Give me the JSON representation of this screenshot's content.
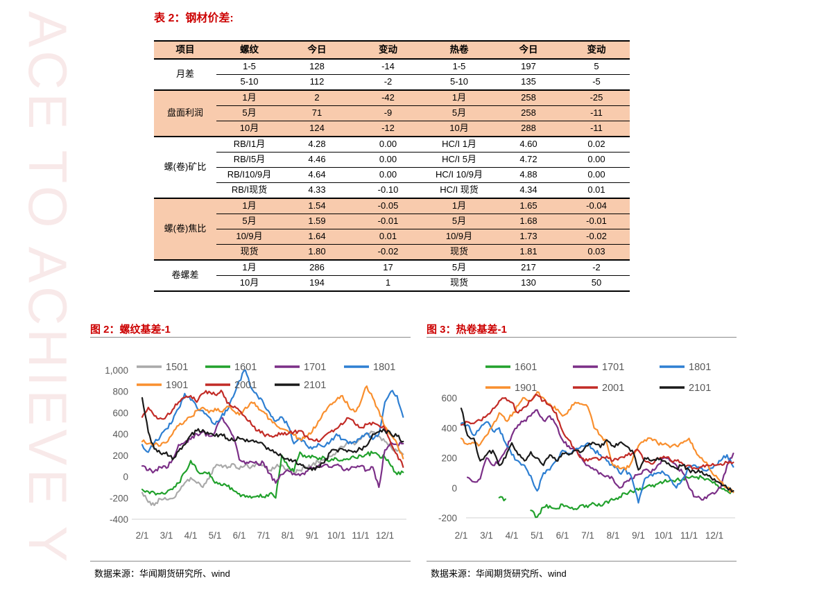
{
  "watermark": {
    "text": "ACE TO ACHIEVE Y",
    "color": "#e9c2c2"
  },
  "table_section": {
    "title": "表 2：钢材价差:",
    "title_color": "#cc0000",
    "shaded_bg": "#f8cbad",
    "header": [
      "项目",
      "螺纹",
      "今日",
      "变动",
      "热卷",
      "今日",
      "变动"
    ],
    "sections": [
      {
        "label": "月差",
        "shaded": false,
        "rows": [
          [
            "1-5",
            "128",
            "-14",
            "1-5",
            "197",
            "5"
          ],
          [
            "5-10",
            "112",
            "-2",
            "5-10",
            "135",
            "-5"
          ]
        ]
      },
      {
        "label": "盘面利润",
        "shaded": true,
        "rows": [
          [
            "1月",
            "2",
            "-42",
            "1月",
            "258",
            "-25"
          ],
          [
            "5月",
            "71",
            "-9",
            "5月",
            "258",
            "-11"
          ],
          [
            "10月",
            "124",
            "-12",
            "10月",
            "288",
            "-11"
          ]
        ]
      },
      {
        "label": "螺(卷)矿比",
        "shaded": false,
        "rows": [
          [
            "RB/I1月",
            "4.28",
            "0.00",
            "HC/I 1月",
            "4.60",
            "0.02"
          ],
          [
            "RB/I5月",
            "4.46",
            "0.00",
            "HC/I 5月",
            "4.72",
            "0.00"
          ],
          [
            "RB/I10/9月",
            "4.64",
            "0.00",
            "HC/I 10/9月",
            "4.88",
            "0.00"
          ],
          [
            "RB/I现货",
            "4.33",
            "-0.10",
            "HC/I 现货",
            "4.34",
            "0.01"
          ]
        ]
      },
      {
        "label": "螺(卷)焦比",
        "shaded": true,
        "rows": [
          [
            "1月",
            "1.54",
            "-0.05",
            "1月",
            "1.65",
            "-0.04"
          ],
          [
            "5月",
            "1.59",
            "-0.01",
            "5月",
            "1.68",
            "-0.01"
          ],
          [
            "10/9月",
            "1.64",
            "0.01",
            "10/9月",
            "1.73",
            "-0.02"
          ],
          [
            "现货",
            "1.80",
            "-0.02",
            "现货",
            "1.81",
            "0.03"
          ]
        ]
      },
      {
        "label": "卷螺差",
        "shaded": false,
        "rows": [
          [
            "1月",
            "286",
            "17",
            "5月",
            "217",
            "-2"
          ],
          [
            "10月",
            "194",
            "1",
            "现货",
            "130",
            "50"
          ]
        ]
      }
    ]
  },
  "figures": [
    {
      "title": "图 2：螺纹基差-1",
      "source": "数据来源：华闻期货研究所、wind"
    },
    {
      "title": "图 3：热卷基差-1",
      "source": "数据来源：华闻期货研究所、wind"
    }
  ],
  "chart_data": [
    {
      "type": "line",
      "title": "图 2：螺纹基差-1",
      "xlabel": "",
      "ylabel": "",
      "grid": false,
      "legend_position": "top-inside",
      "x_start": 2,
      "x_step": 0.25,
      "xtick_labels": [
        "2/1",
        "3/1",
        "4/1",
        "5/1",
        "6/1",
        "7/1",
        "8/1",
        "9/1",
        "10/1",
        "11/1",
        "12/1"
      ],
      "ylim": [
        -400,
        1000
      ],
      "ytick_values": [
        1000,
        800,
        600,
        400,
        200,
        0,
        -200,
        -400
      ],
      "ytick_labels": [
        "1,000",
        "800",
        "600",
        "400",
        "200",
        "0",
        "-200",
        "-400"
      ],
      "axis_color": "#d9d9d9",
      "tick_color": "#595959",
      "legend_rows": [
        [
          "1501",
          "1601",
          "1701",
          "1801"
        ],
        [
          "1901",
          "2001",
          "2101"
        ]
      ],
      "series": [
        {
          "name": "1501",
          "color": "#a9a9a9",
          "values": [
            -150,
            -240,
            -270,
            -210,
            -215,
            -205,
            -140,
            -60,
            -10,
            -60,
            -100,
            -20,
            90,
            110,
            80,
            120,
            70,
            110,
            90,
            120,
            110,
            60,
            90,
            110,
            70,
            40,
            60,
            90,
            110,
            140,
            160,
            190,
            230,
            280,
            320,
            300,
            350,
            400,
            420,
            380,
            330,
            280,
            240,
            210
          ]
        },
        {
          "name": "1601",
          "color": "#21a12c",
          "values": [
            -120,
            -140,
            -150,
            -160,
            -150,
            -120,
            -60,
            40,
            150,
            60,
            30,
            40,
            -60,
            -80,
            -90,
            -130,
            -160,
            -190,
            -200,
            -180,
            -190,
            -160,
            -200,
            200,
            100,
            50,
            230,
            180,
            200,
            160,
            180,
            150,
            170,
            150,
            160,
            180,
            200,
            210,
            220,
            200,
            180,
            100,
            20,
            40
          ]
        },
        {
          "name": "1701",
          "color": "#7b2f87",
          "values": [
            100,
            60,
            50,
            90,
            80,
            160,
            300,
            320,
            350,
            400,
            420,
            380,
            420,
            550,
            480,
            380,
            160,
            120,
            140,
            120,
            130,
            30,
            -60,
            20,
            60,
            30,
            10,
            50,
            80,
            100,
            110,
            90,
            110,
            70,
            60,
            90,
            100,
            60,
            90,
            -100,
            250,
            320,
            300,
            310
          ]
        },
        {
          "name": "1801",
          "color": "#2e7fd2",
          "values": [
            300,
            230,
            320,
            380,
            450,
            520,
            640,
            780,
            720,
            650,
            620,
            560,
            490,
            560,
            620,
            750,
            900,
            1000,
            830,
            760,
            690,
            600,
            520,
            560,
            480,
            310,
            360,
            300,
            260,
            310,
            280,
            330,
            400,
            350,
            310,
            330,
            360,
            410,
            350,
            400,
            700,
            800,
            760,
            560
          ]
        },
        {
          "name": "1901",
          "color": "#f98f2e",
          "values": [
            330,
            310,
            300,
            290,
            320,
            400,
            480,
            520,
            560,
            620,
            650,
            600,
            640,
            610,
            660,
            620,
            580,
            650,
            700,
            660,
            610,
            540,
            490,
            450,
            430,
            390,
            350,
            380,
            420,
            520,
            610,
            680,
            720,
            760,
            660,
            610,
            700,
            850,
            740,
            620,
            470,
            390,
            310,
            170
          ]
        },
        {
          "name": "2001",
          "color": "#c22b26",
          "values": [
            560,
            650,
            570,
            550,
            570,
            630,
            700,
            740,
            760,
            700,
            780,
            800,
            770,
            810,
            690,
            650,
            620,
            560,
            490,
            430,
            400,
            380,
            390,
            410,
            400,
            420,
            430,
            380,
            350,
            330,
            380,
            420,
            450,
            490,
            550,
            500,
            460,
            490,
            510,
            480,
            450,
            310,
            210,
            90
          ]
        },
        {
          "name": "2101",
          "color": "#1a1a1a",
          "values": [
            740,
            420,
            260,
            220,
            230,
            160,
            240,
            300,
            390,
            430,
            440,
            400,
            380,
            400,
            360,
            340,
            360,
            330,
            340,
            320,
            300,
            250,
            230,
            190,
            170,
            150,
            120,
            80,
            60,
            90,
            130,
            230,
            250,
            260,
            250,
            240,
            260,
            290,
            400,
            420,
            430,
            400,
            380,
            330
          ]
        }
      ]
    },
    {
      "type": "line",
      "title": "图 3：热卷基差-1",
      "xlabel": "",
      "ylabel": "",
      "grid": false,
      "legend_position": "top-inside",
      "x_start": 2,
      "x_step": 0.25,
      "xtick_labels": [
        "2/1",
        "3/1",
        "4/1",
        "5/1",
        "6/1",
        "7/1",
        "8/1",
        "9/1",
        "10/1",
        "11/1",
        "12/1"
      ],
      "ylim": [
        -200,
        600
      ],
      "ytick_values": [
        600,
        400,
        200,
        0,
        -200
      ],
      "ytick_labels": [
        "600",
        "400",
        "200",
        "0",
        "-200"
      ],
      "axis_color": "#d9d9d9",
      "tick_color": "#595959",
      "legend_rows": [
        [
          "1601",
          "1701",
          "1801"
        ],
        [
          "1901",
          "2001",
          "2101"
        ]
      ],
      "series": [
        {
          "name": "1601",
          "color": "#21a12c",
          "values": [
            null,
            null,
            null,
            null,
            null,
            null,
            -65,
            -75,
            null,
            null,
            null,
            -150,
            -195,
            -130,
            -120,
            -140,
            -110,
            -130,
            -140,
            -115,
            -130,
            -105,
            -120,
            -90,
            -80,
            -60,
            -40,
            -25,
            -15,
            0,
            10,
            25,
            40,
            50,
            55,
            60,
            65,
            70,
            70,
            60,
            40,
            0,
            -20,
            -30
          ]
        },
        {
          "name": "1701",
          "color": "#7b2f87",
          "values": [
            null,
            70,
            40,
            60,
            200,
            150,
            180,
            250,
            350,
            420,
            450,
            480,
            520,
            450,
            480,
            420,
            320,
            280,
            250,
            200,
            150,
            120,
            100,
            80,
            60,
            0,
            40,
            60,
            90,
            120,
            100,
            150,
            200,
            180,
            150,
            100,
            0,
            -60,
            -80,
            -50,
            -40,
            0,
            150,
            230
          ]
        },
        {
          "name": "1801",
          "color": "#2e7fd2",
          "values": [
            430,
            420,
            350,
            400,
            440,
            380,
            400,
            300,
            220,
            180,
            150,
            80,
            -20,
            100,
            120,
            180,
            250,
            230,
            260,
            280,
            300,
            250,
            220,
            180,
            150,
            100,
            120,
            60,
            -100,
            60,
            90,
            100,
            100,
            60,
            0,
            60,
            140,
            150,
            130,
            120,
            150,
            180,
            220,
            140
          ]
        },
        {
          "name": "1901",
          "color": "#f98f2e",
          "values": [
            330,
            290,
            300,
            290,
            350,
            420,
            500,
            450,
            480,
            550,
            600,
            580,
            640,
            600,
            560,
            520,
            480,
            520,
            570,
            560,
            540,
            400,
            350,
            300,
            150,
            130,
            120,
            180,
            280,
            320,
            330,
            300,
            290,
            270,
            280,
            300,
            330,
            250,
            200,
            150,
            80,
            40,
            0,
            -30
          ]
        },
        {
          "name": "2001",
          "color": "#c22b26",
          "values": [
            420,
            440,
            430,
            450,
            480,
            530,
            580,
            600,
            570,
            500,
            540,
            580,
            620,
            580,
            550,
            500,
            380,
            320,
            250,
            200,
            180,
            200,
            190,
            210,
            180,
            200,
            220,
            230,
            250,
            180,
            160,
            200,
            210,
            190,
            180,
            160,
            150,
            130,
            140,
            150,
            150,
            160,
            170,
            170
          ]
        },
        {
          "name": "2101",
          "color": "#1a1a1a",
          "values": [
            530,
            350,
            330,
            180,
            220,
            250,
            150,
            200,
            300,
            220,
            180,
            240,
            200,
            150,
            220,
            180,
            230,
            220,
            250,
            240,
            280,
            300,
            270,
            320,
            280,
            300,
            280,
            250,
            120,
            200,
            180,
            200,
            180,
            150,
            130,
            150,
            120,
            100,
            110,
            80,
            60,
            30,
            0,
            -20
          ]
        }
      ]
    }
  ]
}
